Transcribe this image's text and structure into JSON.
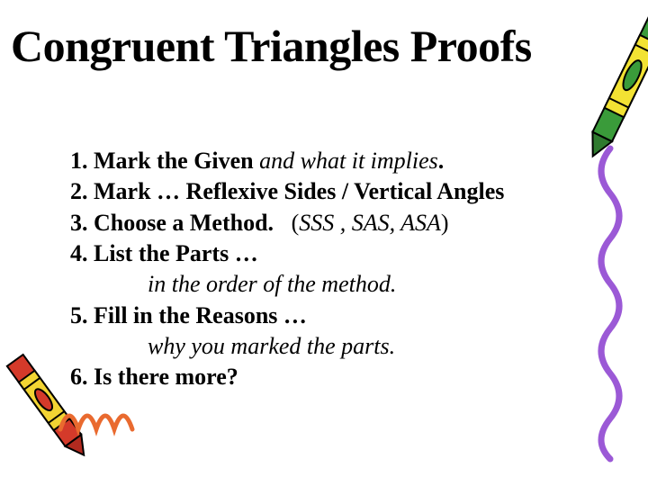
{
  "title": "Congruent Triangles Proofs",
  "title_fontsize": 50,
  "body_fontsize": 26,
  "text_color": "#000000",
  "background_color": "#ffffff",
  "lines": [
    {
      "num": "1.",
      "bold": "Mark the Given ",
      "italic": "and what it implies",
      "tail": "."
    },
    {
      "num": "2.",
      "bold": "Mark … Reflexive Sides / Vertical Angles",
      "italic": "",
      "tail": ""
    },
    {
      "num": "3.",
      "bold": "Choose a Method.   ",
      "paren_open": "(",
      "italic": "SSS , SAS, ASA",
      "paren_close": ")",
      "tail": ""
    },
    {
      "num": "4.",
      "bold": "List the Parts …",
      "italic": "",
      "tail": ""
    },
    {
      "indent": true,
      "italic": "in the order of the method."
    },
    {
      "num": "5.",
      "bold": "Fill in the Reasons …",
      "italic": "",
      "tail": ""
    },
    {
      "indent": true,
      "italic": "why you marked the parts."
    },
    {
      "num": "6.",
      "bold": "Is there more?",
      "italic": "",
      "tail": ""
    }
  ],
  "decor": {
    "crayon_green": {
      "body": "#3a9b3a",
      "wrap": "#f2e233",
      "wrap_stripe": "#000000",
      "tip": "#2f7a2f"
    },
    "crayon_red": {
      "body": "#d43a2a",
      "wrap": "#f2d433",
      "wrap_stripe": "#000000",
      "tip": "#b22a1f"
    },
    "squiggle_color": "#9b59d6",
    "scribble_color": "#e96a2f"
  }
}
